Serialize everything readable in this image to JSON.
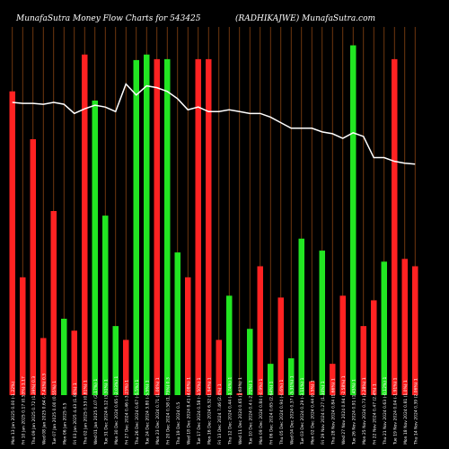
{
  "header": {
    "left": "MunafaSutra  Money Flow  Charts for 543425",
    "right": "(RADHIKAJWE) MunafaSutra.com"
  },
  "colors": {
    "background": "#000000",
    "grid": "#8b4513",
    "inflow": "#22e622",
    "outflow": "#ff2222",
    "line": "#ffffff",
    "label": "#ffffff"
  },
  "chart_data": {
    "type": "bar",
    "title": "MunafaSutra  Money Flow  Charts for 543425",
    "subtitle": "(RADHIKAJWE) MunafaSutra.com",
    "categories": [
      "Mon 13 Jan 2025",
      "Fri 10 Jan 2025",
      "Thu 09 Jan 2025",
      "Wed 08 Jan 2025",
      "Tue 07 Jan 2025",
      "Mon 06 Jan 2025",
      "Fri 03 Jan 2025",
      "Thu 02 Jan 2025",
      "Wed 01 Jan 2025",
      "Tue 31 Dec 2024",
      "Mon 30 Dec 2024",
      "Fri 27 Dec 2024",
      "Thu 26 Dec 2024",
      "Tue 24 Dec 2024",
      "Mon 23 Dec 2024",
      "Fri 20 Dec 2024",
      "Thu 19 Dec 2024",
      "Wed 18 Dec 2024",
      "Tue 17 Dec 2024",
      "Mon 16 Dec 2024",
      "Fri 13 Dec 2024",
      "Thu 12 Dec 2024",
      "Wed 11 Dec 2024",
      "Tue 10 Dec 2024",
      "Mon 09 Dec 2024",
      "Fri 06 Dec 2024",
      "Thu 05 Dec 2024",
      "Wed 04 Dec 2024",
      "Tue 03 Dec 2024",
      "Mon 02 Dec 2024",
      "Fri 29 Nov 2024",
      "Thu 28 Nov 2024",
      "Wed 27 Nov 2024",
      "Tue 26 Nov 2024",
      "Mon 25 Nov 2024",
      "Fri 22 Nov 2024",
      "Thu 21 Nov 2024",
      "Tue 19 Nov 2024",
      "Mon 18 Nov 2024",
      "Thu 14 Nov 2024"
    ],
    "tick_labels": [
      "0.00 (-1.22%)",
      "0.17 (0.53%) 1.17",
      "0.72 (1.39%) 0.3",
      "0.64 (-7.41%) 0.3",
      "0.00 (0.55%) 1",
      "0.5",
      "4.43 (1.06%) 1",
      "0.53 (0.81%) 1",
      "0.07 (2.17%) 1",
      "6.12 (3.31%) 1",
      "0.65 (-2.03%) 1",
      "0.46 (-3.23%) 1",
      "0.67 (-5.5%) 1",
      "3.80 (-5.5%) 1",
      "0.71 (1.06%) 1",
      "0.58 (1.75%) 0.3",
      "0.5",
      "8.41 (4.08%) 1",
      "0.58 (-3.50%) 1",
      "6.32 (1.94%) 1",
      "7.46 (2.4%) 1",
      "0.44 (-1.74%) 1",
      "0.65 (1.63%) 1",
      "0.4 (-2.71%) 1",
      "0.84 (-0.9%) 1",
      "0.65 (2.64%) 1",
      "0.94 (-0.6%) 1",
      "0.37 (-5.31%) 1",
      "0.29 (-3.11%) 1",
      "0.44 (0.5%) 1",
      "0.27 (1.34%) 1",
      "0.84 (1.66%) 1",
      "0.94 (-2.58%) 1",
      "0.91 (1.45%) 1",
      "0.73 (2.28%) 1",
      "0.47 (2.4%) 1",
      "0.63 (-0.12%) 1",
      "0.04 (-1.91%) 1",
      "0.81 (1.0%) 1",
      "0.39 (2.06%) 1"
    ],
    "series": [
      {
        "values": [
          330,
          128,
          278,
          62,
          200,
          83,
          70,
          370,
          320,
          195,
          75,
          60,
          364,
          370,
          365,
          365,
          155,
          128,
          365,
          365,
          60,
          108,
          2,
          72,
          140,
          34,
          106,
          40,
          170,
          15,
          157,
          34,
          108,
          380,
          75,
          103,
          145,
          365,
          148,
          140
        ],
        "colors": [
          "outflow",
          "outflow",
          "outflow",
          "outflow",
          "outflow",
          "inflow",
          "outflow",
          "outflow",
          "inflow",
          "inflow",
          "inflow",
          "outflow",
          "inflow",
          "inflow",
          "outflow",
          "inflow",
          "inflow",
          "outflow",
          "outflow",
          "outflow",
          "outflow",
          "inflow",
          "outflow",
          "inflow",
          "outflow",
          "inflow",
          "outflow",
          "inflow",
          "inflow",
          "outflow",
          "inflow",
          "outflow",
          "outflow",
          "inflow",
          "outflow",
          "outflow",
          "inflow",
          "outflow",
          "outflow",
          "outflow"
        ]
      },
      {
        "type": "line",
        "values": [
          318,
          317,
          317,
          316,
          318,
          316,
          306,
          311,
          315,
          313,
          308,
          338,
          326,
          336,
          334,
          330,
          322,
          310,
          313,
          308,
          308,
          310,
          308,
          306,
          306,
          302,
          296,
          290,
          290,
          290,
          286,
          284,
          279,
          285,
          281,
          258,
          258,
          254,
          252,
          251
        ]
      }
    ],
    "xlabel": "",
    "ylabel": "",
    "ylim": [
      0,
      400
    ],
    "grid": true,
    "legend": "none"
  }
}
